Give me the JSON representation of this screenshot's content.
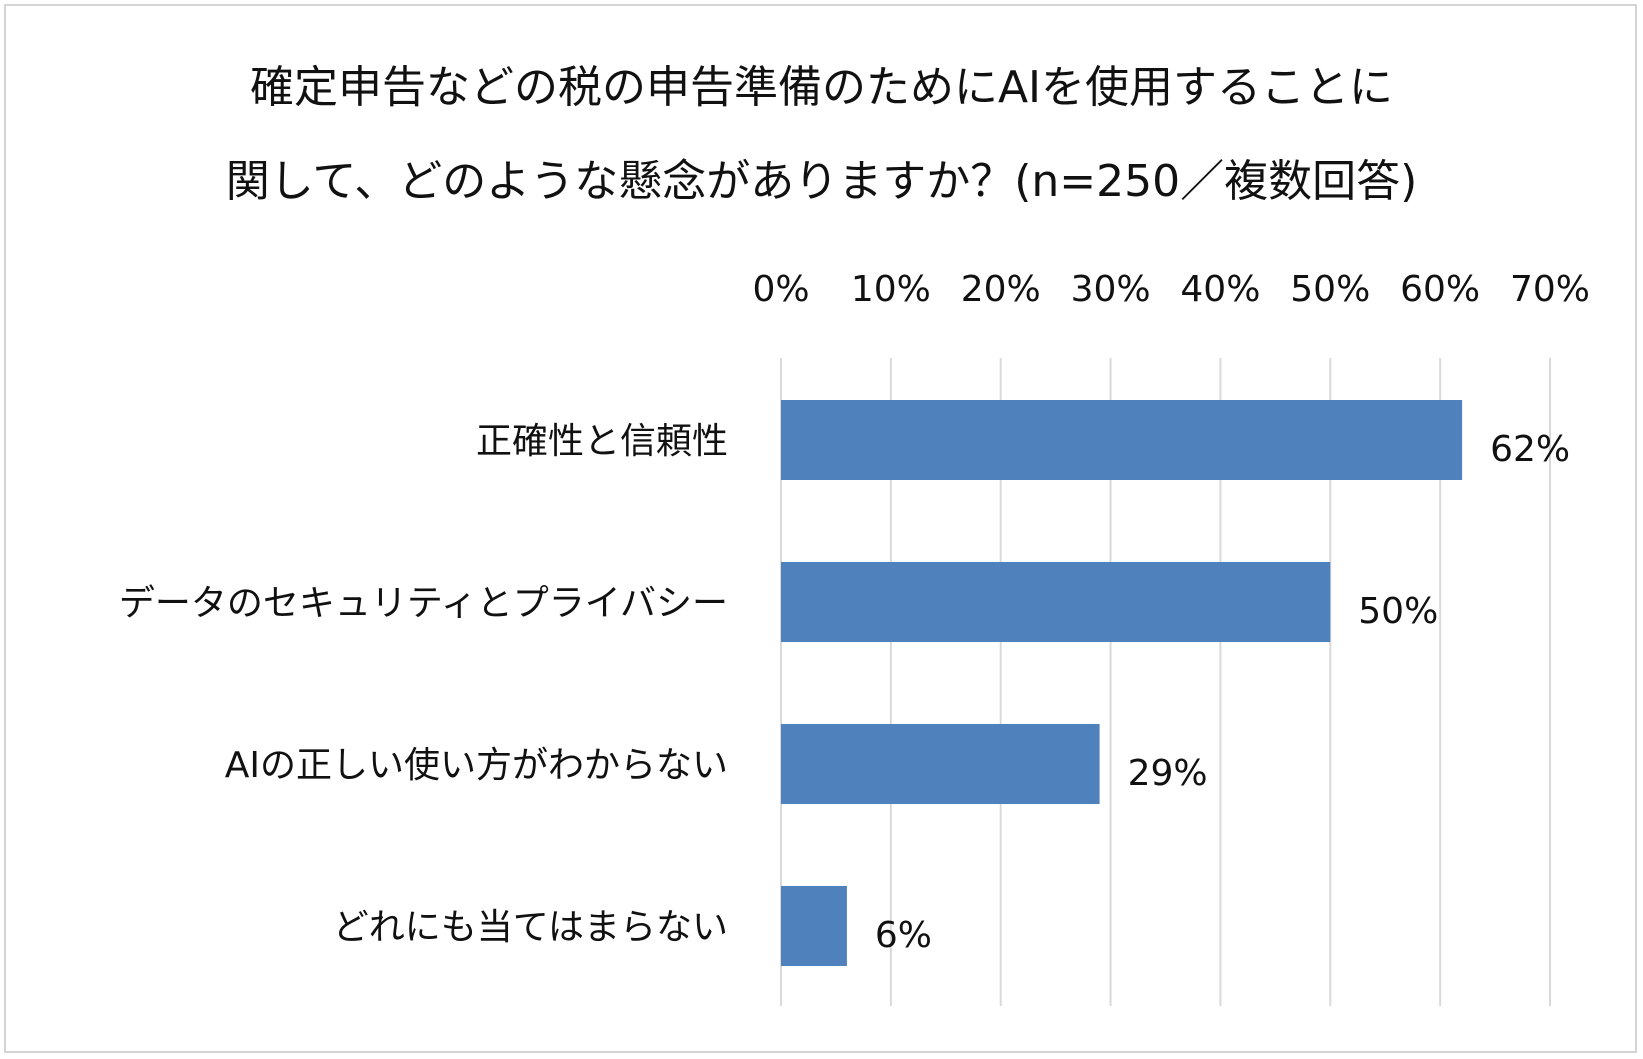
{
  "chart_data": {
    "type": "bar",
    "orientation": "horizontal",
    "title_lines": [
      "確定申告などの税の申告準備のためにAIを使用することに",
      "関して、どのような懸念がありますか？(n=250／複数回答)"
    ],
    "categories": [
      "正確性と信頼性",
      "データのセキュリティとプライバシー",
      "AIの正しい使い方がわからない",
      "どれにも当てはまらない"
    ],
    "values": [
      62,
      50,
      29,
      6
    ],
    "data_labels": [
      "62%",
      "50%",
      "29%",
      "6%"
    ],
    "xlim": [
      0,
      70
    ],
    "x_ticks": [
      0,
      10,
      20,
      30,
      40,
      50,
      60,
      70
    ],
    "x_tick_labels": [
      "0%",
      "10%",
      "20%",
      "30%",
      "40%",
      "50%",
      "60%",
      "70%"
    ],
    "x_axis_position": "top",
    "grid": true,
    "legend": "none",
    "bar_color": "#4f81bd",
    "grid_color": "#d9d9d9"
  }
}
